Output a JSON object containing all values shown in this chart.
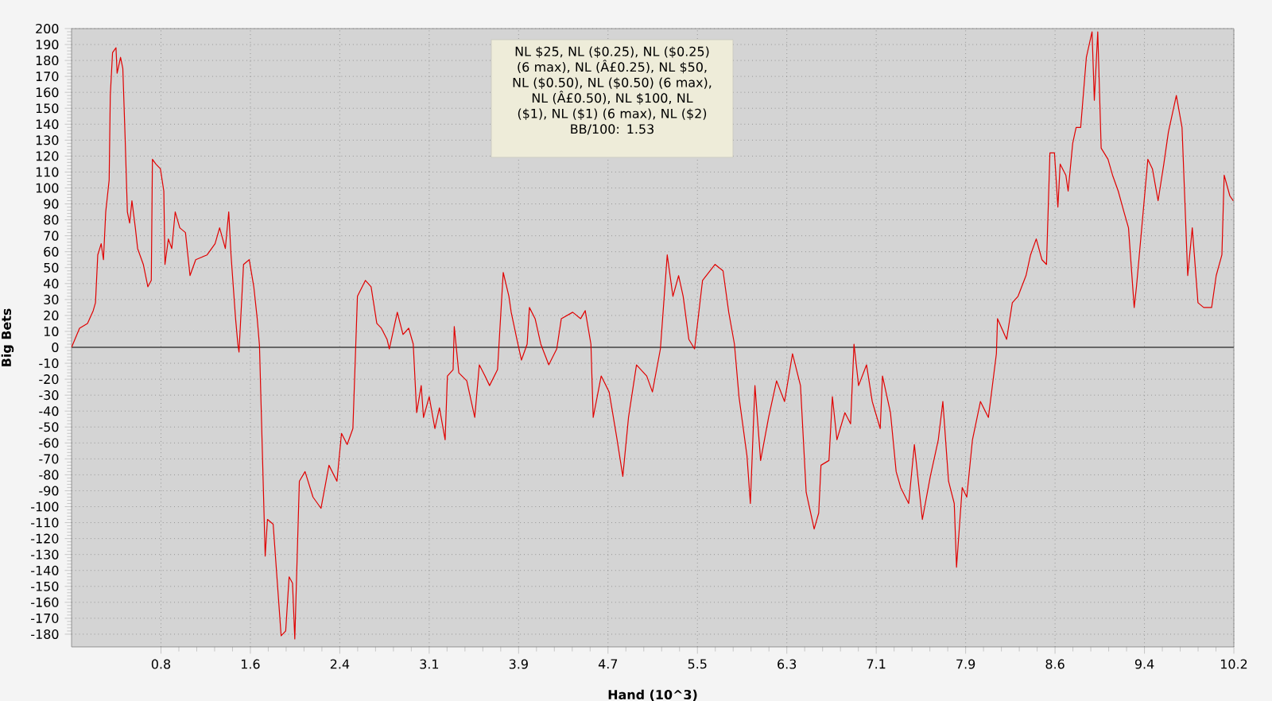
{
  "chart_data": {
    "type": "line",
    "xlabel": "Hand (10^3)",
    "ylabel": "Big Bets",
    "annotations": [
      "NL $25, NL ($0.25), NL ($0.25) (6 max), NL (Â£0.25), NL $50, NL ($0.50), NL ($0.50) (6 max), NL (Â£0.50), NL $100, NL ($1), NL ($1) (6 max), NL ($2)",
      "BB/100: 1.53"
    ],
    "xlim": [
      0,
      10.205
    ],
    "ylim": [
      -188,
      200
    ],
    "xticks": [
      {
        "value": 0.785,
        "label": "0.8"
      },
      {
        "value": 1.57,
        "label": "1.6"
      },
      {
        "value": 2.355,
        "label": "2.4"
      },
      {
        "value": 3.14,
        "label": "3.1"
      },
      {
        "value": 3.925,
        "label": "3.9"
      },
      {
        "value": 4.71,
        "label": "4.7"
      },
      {
        "value": 5.495,
        "label": "5.5"
      },
      {
        "value": 6.28,
        "label": "6.3"
      },
      {
        "value": 7.065,
        "label": "7.1"
      },
      {
        "value": 7.85,
        "label": "7.9"
      },
      {
        "value": 8.635,
        "label": "8.6"
      },
      {
        "value": 9.42,
        "label": "9.4"
      },
      {
        "value": 10.205,
        "label": "10.2"
      }
    ],
    "yticks": [
      -180,
      -170,
      -160,
      -150,
      -140,
      -130,
      -120,
      -110,
      -100,
      -90,
      -80,
      -70,
      -60,
      -50,
      -40,
      -30,
      -20,
      -10,
      0,
      10,
      20,
      30,
      40,
      50,
      60,
      70,
      80,
      90,
      100,
      110,
      120,
      130,
      140,
      150,
      160,
      170,
      180,
      190,
      200
    ],
    "grid": true,
    "ref_lines": [
      {
        "axis": "y",
        "value": 0,
        "color": "#666666"
      }
    ],
    "series": [
      {
        "color": "#e00000",
        "x": [
          0.0,
          0.07,
          0.14,
          0.19,
          0.21,
          0.23,
          0.26,
          0.28,
          0.3,
          0.33,
          0.34,
          0.36,
          0.39,
          0.4,
          0.43,
          0.45,
          0.47,
          0.49,
          0.51,
          0.53,
          0.56,
          0.58,
          0.63,
          0.67,
          0.7,
          0.71,
          0.74,
          0.78,
          0.81,
          0.82,
          0.85,
          0.88,
          0.91,
          0.95,
          1.0,
          1.04,
          1.09,
          1.19,
          1.26,
          1.3,
          1.35,
          1.38,
          1.4,
          1.44,
          1.46,
          1.47,
          1.51,
          1.56,
          1.6,
          1.63,
          1.65,
          1.7,
          1.72,
          1.77,
          1.79,
          1.84,
          1.88,
          1.91,
          1.94,
          1.96,
          2.0,
          2.05,
          2.12,
          2.19,
          2.26,
          2.33,
          2.37,
          2.42,
          2.47,
          2.51,
          2.58,
          2.63,
          2.68,
          2.72,
          2.77,
          2.79,
          2.86,
          2.91,
          2.96,
          3.0,
          3.03,
          3.07,
          3.09,
          3.14,
          3.19,
          3.23,
          3.28,
          3.3,
          3.35,
          3.36,
          3.4,
          3.47,
          3.54,
          3.58,
          3.63,
          3.67,
          3.74,
          3.79,
          3.84,
          3.86,
          3.91,
          3.95,
          4.0,
          4.02,
          4.07,
          4.12,
          4.19,
          4.26,
          4.3,
          4.4,
          4.47,
          4.51,
          4.56,
          4.58,
          4.65,
          4.72,
          4.79,
          4.84,
          4.89,
          4.96,
          5.05,
          5.1,
          5.17,
          5.23,
          5.28,
          5.33,
          5.37,
          5.42,
          5.47,
          5.54,
          5.65,
          5.72,
          5.77,
          5.82,
          5.86,
          5.93,
          5.96,
          6.0,
          6.05,
          6.12,
          6.19,
          6.26,
          6.33,
          6.4,
          6.45,
          6.52,
          6.56,
          6.58,
          6.65,
          6.68,
          6.72,
          6.79,
          6.84,
          6.87,
          6.91,
          6.98,
          7.03,
          7.1,
          7.12,
          7.19,
          7.24,
          7.28,
          7.35,
          7.4,
          7.47,
          7.54,
          7.61,
          7.65,
          7.7,
          7.75,
          7.77,
          7.82,
          7.86,
          7.91,
          7.98,
          8.05,
          8.12,
          8.13,
          8.21,
          8.26,
          8.31,
          8.38,
          8.42,
          8.47,
          8.52,
          8.56,
          8.59,
          8.63,
          8.66,
          8.68,
          8.73,
          8.75,
          8.79,
          8.82,
          8.86,
          8.91,
          8.96,
          8.98,
          9.01,
          9.04,
          9.1,
          9.14,
          9.19,
          9.24,
          9.28,
          9.33,
          9.35,
          9.4,
          9.45,
          9.49,
          9.54,
          9.59,
          9.63,
          9.7,
          9.75,
          9.8,
          9.84,
          9.89,
          9.94,
          10.01,
          10.05,
          10.1,
          10.12,
          10.17,
          10.2
        ],
        "values": [
          0,
          12,
          15,
          23,
          28,
          58,
          65,
          55,
          85,
          105,
          158,
          185,
          188,
          172,
          182,
          175,
          132,
          85,
          78,
          92,
          75,
          62,
          52,
          38,
          42,
          118,
          115,
          112,
          98,
          52,
          68,
          62,
          85,
          75,
          72,
          45,
          55,
          58,
          65,
          75,
          62,
          85,
          58,
          18,
          2,
          -3,
          52,
          55,
          38,
          18,
          1,
          -131,
          -108,
          -111,
          -131,
          -181,
          -178,
          -144,
          -148,
          -183,
          -84,
          -78,
          -94,
          -101,
          -74,
          -84,
          -54,
          -61,
          -51,
          32,
          42,
          38,
          15,
          12,
          5,
          -1,
          22,
          8,
          12,
          2,
          -41,
          -24,
          -44,
          -31,
          -51,
          -38,
          -58,
          -18,
          -14,
          13,
          -16,
          -21,
          -44,
          -11,
          -18,
          -24,
          -14,
          47,
          32,
          22,
          5,
          -8,
          2,
          25,
          18,
          2,
          -11,
          -1,
          18,
          22,
          18,
          23,
          2,
          -44,
          -18,
          -28,
          -58,
          -81,
          -44,
          -11,
          -18,
          -28,
          -1,
          58,
          32,
          45,
          32,
          5,
          -1,
          42,
          52,
          48,
          22,
          2,
          -31,
          -68,
          -98,
          -24,
          -71,
          -44,
          -21,
          -34,
          -4,
          -24,
          -91,
          -114,
          -104,
          -74,
          -71,
          -31,
          -58,
          -41,
          -48,
          2,
          -24,
          -11,
          -34,
          -51,
          -18,
          -41,
          -78,
          -88,
          -98,
          -61,
          -108,
          -81,
          -58,
          -34,
          -84,
          -98,
          -138,
          -88,
          -94,
          -58,
          -34,
          -44,
          -4,
          18,
          5,
          28,
          32,
          45,
          58,
          68,
          55,
          52,
          122,
          122,
          88,
          115,
          108,
          98,
          128,
          138,
          138,
          182,
          198,
          155,
          198,
          125,
          118,
          108,
          98,
          85,
          75,
          25,
          38,
          78,
          118,
          112,
          92,
          115,
          135,
          158,
          138,
          45,
          75,
          28,
          25,
          25,
          45,
          58,
          108,
          95,
          92
        ]
      }
    ]
  }
}
